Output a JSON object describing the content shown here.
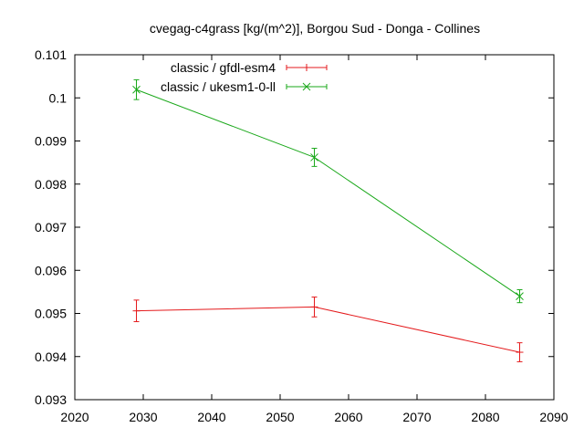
{
  "chart_data": {
    "type": "line",
    "title": "cvegag-c4grass [kg/(m^2)], Borgou Sud - Donga - Collines",
    "xlabel": "",
    "ylabel": "",
    "xlim": [
      2020,
      2090
    ],
    "ylim": [
      0.093,
      0.101
    ],
    "xticks": [
      2020,
      2030,
      2040,
      2050,
      2060,
      2070,
      2080,
      2090
    ],
    "yticks": [
      0.093,
      0.094,
      0.095,
      0.096,
      0.097,
      0.098,
      0.099,
      0.1,
      0.101
    ],
    "xtick_labels": [
      "2020",
      "2030",
      "2040",
      "2050",
      "2060",
      "2070",
      "2080",
      "2090"
    ],
    "ytick_labels": [
      "0.093",
      "0.094",
      "0.095",
      "0.096",
      "0.097",
      "0.098",
      "0.099",
      "0.1",
      "0.101"
    ],
    "grid": false,
    "legend_position": "top-left",
    "series": [
      {
        "name": "classic / gfdl-esm4",
        "color": "#e41a1c",
        "marker": "plus",
        "x": [
          2029,
          2055,
          2085
        ],
        "y": [
          0.09506,
          0.09515,
          0.0941
        ],
        "yerr": [
          0.00025,
          0.00023,
          0.00022
        ]
      },
      {
        "name": "classic / ukesm1-0-ll",
        "color": "#1aa81a",
        "marker": "x",
        "x": [
          2029,
          2055,
          2085
        ],
        "y": [
          0.10019,
          0.09862,
          0.0954
        ],
        "yerr": [
          0.00023,
          0.00021,
          0.00015
        ]
      }
    ]
  }
}
